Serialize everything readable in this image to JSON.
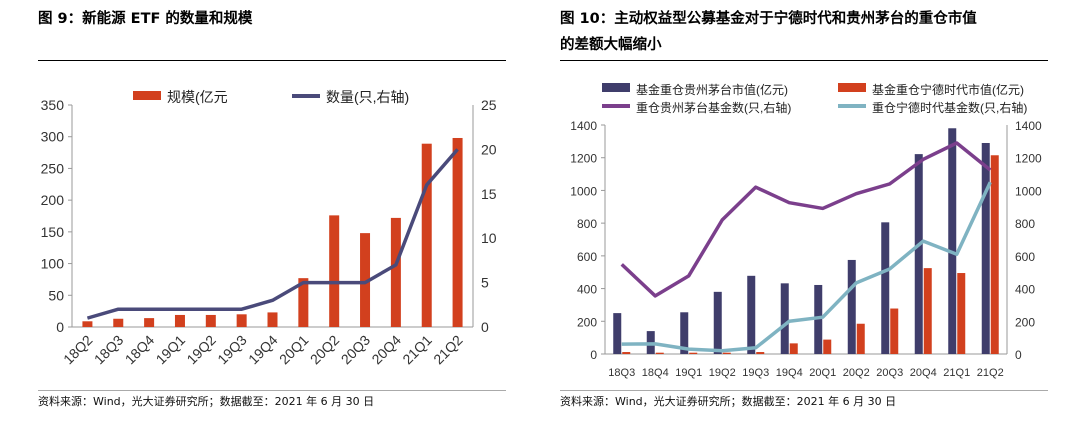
{
  "left": {
    "title": "图 9：新能源 ETF 的数量和规模",
    "source": "资料来源：Wind，光大证券研究所；数据截至：2021 年 6 月 30 日"
  },
  "right": {
    "title_line1": "图 10：主动权益型公募基金对于宁德时代和贵州茅台的重仓市值",
    "title_line2": "的差额大幅缩小",
    "source": "资料来源：Wind，光大证券研究所；数据截至：2021 年 6 月 30 日"
  },
  "chart_data": [
    {
      "type": "bar+line",
      "categories": [
        "18Q2",
        "18Q3",
        "18Q4",
        "19Q1",
        "19Q2",
        "19Q3",
        "19Q4",
        "20Q1",
        "20Q2",
        "20Q3",
        "20Q4",
        "21Q1",
        "21Q2"
      ],
      "series": [
        {
          "name": "规模(亿元",
          "type": "bar",
          "axis": "left",
          "color": "#d2401e",
          "values": [
            9,
            13,
            14,
            19,
            19,
            20,
            23,
            77,
            176,
            148,
            172,
            289,
            298
          ]
        },
        {
          "name": "数量(只,右轴)",
          "type": "line",
          "axis": "right",
          "color": "#4a4a7a",
          "values": [
            1,
            2,
            2,
            2,
            2,
            2,
            3,
            5,
            5,
            5,
            7,
            16,
            20
          ]
        }
      ],
      "ylim": [
        0,
        350
      ],
      "yticks": [
        "0",
        "50",
        "100",
        "150",
        "200",
        "250",
        "300",
        "350"
      ],
      "y2lim": [
        0,
        25
      ],
      "y2ticks": [
        "0",
        "5",
        "10",
        "15",
        "20",
        "25"
      ],
      "legend": "top"
    },
    {
      "type": "bar+line",
      "categories": [
        "18Q3",
        "18Q4",
        "19Q1",
        "19Q2",
        "19Q3",
        "19Q4",
        "20Q1",
        "20Q2",
        "20Q3",
        "20Q4",
        "21Q1",
        "21Q2"
      ],
      "series": [
        {
          "name": "基金重仓贵州茅台市值(亿元)",
          "type": "bar",
          "axis": "left",
          "color": "#3f3d6b",
          "values": [
            250,
            140,
            255,
            380,
            478,
            432,
            422,
            575,
            805,
            1222,
            1380,
            1290
          ]
        },
        {
          "name": "基金重仓宁德时代市值(亿元)",
          "type": "bar",
          "axis": "left",
          "color": "#d2401e",
          "values": [
            12,
            8,
            8,
            8,
            12,
            65,
            88,
            185,
            278,
            525,
            495,
            1215
          ]
        },
        {
          "name": "重仓贵州茅台基金数(只,右轴)",
          "type": "line",
          "axis": "right",
          "color": "#7b3f8c",
          "values": [
            548,
            355,
            478,
            820,
            1020,
            925,
            890,
            980,
            1040,
            1190,
            1290,
            1125
          ]
        },
        {
          "name": "重仓宁德时代基金数(只,右轴)",
          "type": "line",
          "axis": "right",
          "color": "#7fb3c2",
          "values": [
            60,
            62,
            30,
            20,
            38,
            200,
            225,
            435,
            520,
            690,
            610,
            1050
          ]
        }
      ],
      "ylim": [
        0,
        1400
      ],
      "yticks": [
        "0",
        "200",
        "400",
        "600",
        "800",
        "1000",
        "1200",
        "1400"
      ],
      "y2lim": [
        0,
        1400
      ],
      "y2ticks": [
        "0",
        "200",
        "400",
        "600",
        "800",
        "1000",
        "1200",
        "1400"
      ],
      "legend": "top"
    }
  ]
}
